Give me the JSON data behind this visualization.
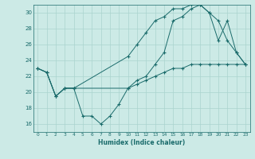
{
  "title": "",
  "xlabel": "Humidex (Indice chaleur)",
  "bg_color": "#cceae6",
  "grid_color": "#aad4cf",
  "line_color": "#1a6b6b",
  "xlim": [
    -0.5,
    23.5
  ],
  "ylim": [
    15.0,
    31.0
  ],
  "xticks": [
    0,
    1,
    2,
    3,
    4,
    5,
    6,
    7,
    8,
    9,
    10,
    11,
    12,
    13,
    14,
    15,
    16,
    17,
    18,
    19,
    20,
    21,
    22,
    23
  ],
  "yticks": [
    16,
    18,
    20,
    22,
    24,
    26,
    28,
    30
  ],
  "series1_x": [
    0,
    1,
    2,
    3,
    4,
    5,
    6,
    7,
    8,
    9,
    10,
    11,
    12,
    13,
    14,
    15,
    16,
    17,
    18,
    19,
    20,
    21,
    22,
    23
  ],
  "series1_y": [
    23.0,
    22.5,
    19.5,
    20.5,
    20.5,
    17.0,
    17.0,
    16.0,
    17.0,
    18.5,
    20.5,
    21.0,
    21.5,
    22.0,
    22.5,
    23.0,
    23.0,
    23.5,
    23.5,
    23.5,
    23.5,
    23.5,
    23.5,
    23.5
  ],
  "series2_x": [
    0,
    1,
    2,
    3,
    4,
    10,
    11,
    12,
    13,
    14,
    15,
    16,
    17,
    18,
    19,
    20,
    21,
    22,
    23
  ],
  "series2_y": [
    23.0,
    22.5,
    19.5,
    20.5,
    20.5,
    24.5,
    26.0,
    27.5,
    29.0,
    29.5,
    30.5,
    30.5,
    31.0,
    31.0,
    30.0,
    26.5,
    29.0,
    25.0,
    23.5
  ],
  "series3_x": [
    0,
    1,
    2,
    3,
    4,
    10,
    11,
    12,
    13,
    14,
    15,
    16,
    17,
    18,
    19,
    20,
    21,
    22,
    23
  ],
  "series3_y": [
    23.0,
    22.5,
    19.5,
    20.5,
    20.5,
    20.5,
    21.5,
    22.0,
    23.5,
    25.0,
    29.0,
    29.5,
    30.5,
    31.0,
    30.0,
    29.0,
    26.5,
    25.0,
    23.5
  ]
}
